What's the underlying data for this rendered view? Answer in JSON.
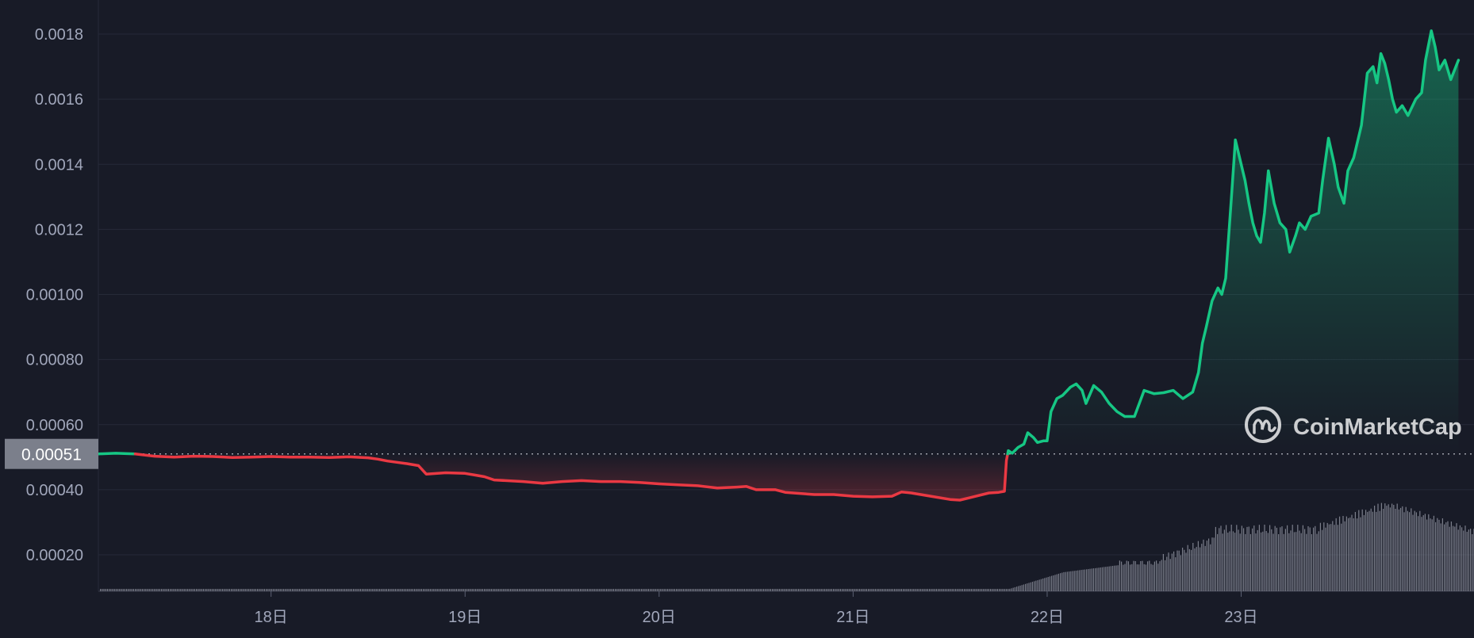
{
  "chart_data": {
    "type": "area",
    "title": "",
    "xlabel": "",
    "ylabel": "",
    "y_ticks": [
      "0.00020",
      "0.00040",
      "0.00060",
      "0.00080",
      "0.00100",
      "0.0012",
      "0.0014",
      "0.0016",
      "0.0018"
    ],
    "y_tick_values": [
      0.0002,
      0.0004,
      0.0006,
      0.0008,
      0.001,
      0.0012,
      0.0014,
      0.0016,
      0.0018
    ],
    "x_ticks": [
      "18日",
      "19日",
      "20日",
      "21日",
      "22日",
      "23日"
    ],
    "x_tick_values": [
      18,
      19,
      20,
      21,
      22,
      23
    ],
    "xlim": [
      17.11,
      24.2
    ],
    "ylim": [
      0.0001,
      0.00183
    ],
    "grid": true,
    "current_price": 0.00051,
    "current_price_label": "0.00051",
    "up_color": "#16c784",
    "down_color": "#ea3943",
    "series": [
      {
        "values": [
          [
            17.11,
            0.00051
          ],
          [
            17.2,
            0.000512
          ],
          [
            17.3,
            0.00051
          ],
          [
            17.4,
            0.000503
          ],
          [
            17.5,
            0.0005
          ],
          [
            17.6,
            0.000503
          ],
          [
            17.7,
            0.000502
          ],
          [
            17.8,
            0.000499
          ],
          [
            17.9,
            0.0005
          ],
          [
            18.0,
            0.000502
          ],
          [
            18.1,
            0.0005
          ],
          [
            18.2,
            0.0005
          ],
          [
            18.3,
            0.000499
          ],
          [
            18.4,
            0.000501
          ],
          [
            18.5,
            0.000498
          ],
          [
            18.55,
            0.000494
          ],
          [
            18.6,
            0.000488
          ],
          [
            18.7,
            0.00048
          ],
          [
            18.76,
            0.000474
          ],
          [
            18.8,
            0.000448
          ],
          [
            18.9,
            0.000452
          ],
          [
            19.0,
            0.00045
          ],
          [
            19.05,
            0.000445
          ],
          [
            19.1,
            0.00044
          ],
          [
            19.15,
            0.00043
          ],
          [
            19.3,
            0.000425
          ],
          [
            19.4,
            0.00042
          ],
          [
            19.5,
            0.000425
          ],
          [
            19.6,
            0.000428
          ],
          [
            19.7,
            0.000425
          ],
          [
            19.8,
            0.000425
          ],
          [
            19.9,
            0.000422
          ],
          [
            20.0,
            0.000418
          ],
          [
            20.1,
            0.000415
          ],
          [
            20.2,
            0.000412
          ],
          [
            20.3,
            0.000405
          ],
          [
            20.4,
            0.000408
          ],
          [
            20.45,
            0.00041
          ],
          [
            20.5,
            0.0004
          ],
          [
            20.6,
            0.0004
          ],
          [
            20.65,
            0.000392
          ],
          [
            20.8,
            0.000385
          ],
          [
            20.9,
            0.000385
          ],
          [
            21.0,
            0.00038
          ],
          [
            21.1,
            0.000378
          ],
          [
            21.2,
            0.00038
          ],
          [
            21.25,
            0.000393
          ],
          [
            21.3,
            0.00039
          ],
          [
            21.4,
            0.00038
          ],
          [
            21.5,
            0.00037
          ],
          [
            21.55,
            0.000368
          ],
          [
            21.6,
            0.000375
          ],
          [
            21.7,
            0.00039
          ],
          [
            21.75,
            0.000392
          ],
          [
            21.78,
            0.000395
          ],
          [
            21.79,
            0.00049
          ],
          [
            21.8,
            0.00052
          ],
          [
            21.82,
            0.000512
          ],
          [
            21.85,
            0.00053
          ],
          [
            21.88,
            0.00054
          ],
          [
            21.9,
            0.000575
          ],
          [
            21.93,
            0.00056
          ],
          [
            21.95,
            0.000545
          ],
          [
            21.98,
            0.00055
          ],
          [
            22.0,
            0.00055
          ],
          [
            22.02,
            0.00064
          ],
          [
            22.05,
            0.00068
          ],
          [
            22.08,
            0.00069
          ],
          [
            22.12,
            0.000715
          ],
          [
            22.15,
            0.000725
          ],
          [
            22.18,
            0.000705
          ],
          [
            22.2,
            0.000665
          ],
          [
            22.24,
            0.00072
          ],
          [
            22.28,
            0.0007
          ],
          [
            22.32,
            0.000665
          ],
          [
            22.36,
            0.00064
          ],
          [
            22.4,
            0.000625
          ],
          [
            22.45,
            0.000625
          ],
          [
            22.5,
            0.000705
          ],
          [
            22.55,
            0.000695
          ],
          [
            22.6,
            0.000698
          ],
          [
            22.65,
            0.000705
          ],
          [
            22.7,
            0.00068
          ],
          [
            22.75,
            0.0007
          ],
          [
            22.78,
            0.00076
          ],
          [
            22.8,
            0.00085
          ],
          [
            22.82,
            0.0009
          ],
          [
            22.85,
            0.00098
          ],
          [
            22.88,
            0.00102
          ],
          [
            22.9,
            0.001
          ],
          [
            22.92,
            0.00105
          ],
          [
            22.95,
            0.0013
          ],
          [
            22.97,
            0.001475
          ],
          [
            23.0,
            0.0014
          ],
          [
            23.02,
            0.00135
          ],
          [
            23.04,
            0.00128
          ],
          [
            23.06,
            0.00122
          ],
          [
            23.08,
            0.00118
          ],
          [
            23.1,
            0.00116
          ],
          [
            23.12,
            0.00125
          ],
          [
            23.14,
            0.00138
          ],
          [
            23.17,
            0.00128
          ],
          [
            23.2,
            0.00122
          ],
          [
            23.23,
            0.0012
          ],
          [
            23.25,
            0.00113
          ],
          [
            23.28,
            0.00118
          ],
          [
            23.3,
            0.00122
          ],
          [
            23.33,
            0.0012
          ],
          [
            23.36,
            0.00124
          ],
          [
            23.4,
            0.00125
          ],
          [
            23.42,
            0.00135
          ],
          [
            23.45,
            0.00148
          ],
          [
            23.48,
            0.0014
          ],
          [
            23.5,
            0.00133
          ],
          [
            23.53,
            0.00128
          ],
          [
            23.55,
            0.00138
          ],
          [
            23.58,
            0.00142
          ],
          [
            23.62,
            0.00152
          ],
          [
            23.65,
            0.00168
          ],
          [
            23.68,
            0.0017
          ],
          [
            23.7,
            0.00165
          ],
          [
            23.72,
            0.00174
          ],
          [
            23.74,
            0.00171
          ],
          [
            23.76,
            0.00166
          ],
          [
            23.78,
            0.0016
          ],
          [
            23.8,
            0.00156
          ],
          [
            23.83,
            0.00158
          ],
          [
            23.86,
            0.00155
          ],
          [
            23.9,
            0.0016
          ],
          [
            23.93,
            0.00162
          ],
          [
            23.95,
            0.00172
          ],
          [
            23.98,
            0.00181
          ],
          [
            24.0,
            0.00176
          ],
          [
            24.02,
            0.00169
          ],
          [
            24.05,
            0.00172
          ],
          [
            24.08,
            0.00166
          ],
          [
            24.12,
            0.00172
          ]
        ]
      }
    ]
  },
  "watermark": {
    "text": "CoinMarketCap"
  }
}
